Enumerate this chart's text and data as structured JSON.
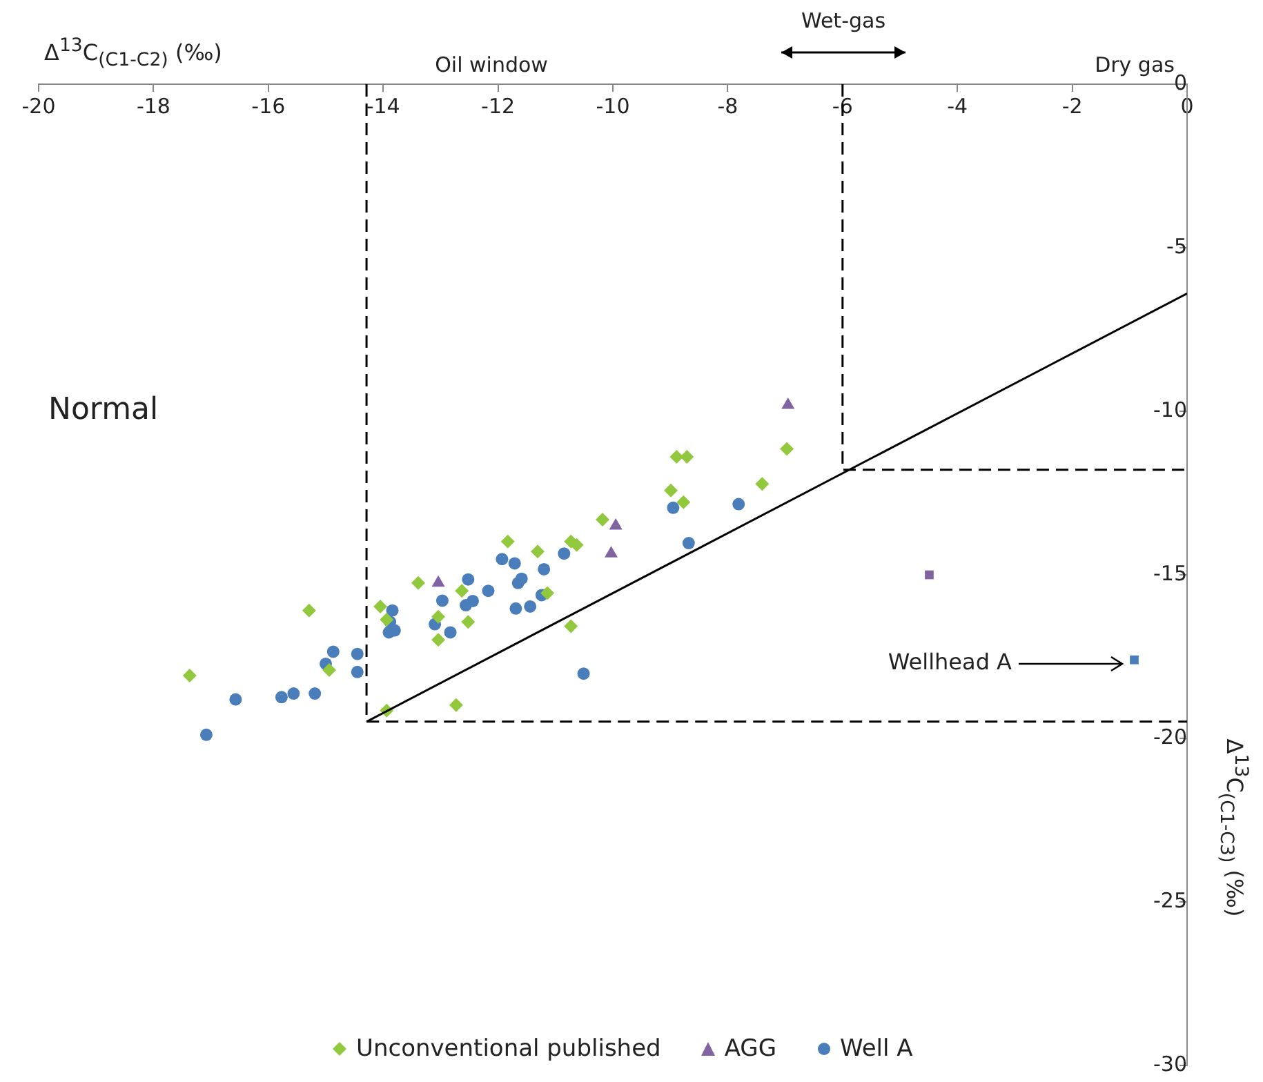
{
  "chart_data": {
    "type": "scatter",
    "xlabel": "Δ$^{13}$C$_{(C1-C2)}$ (‰)",
    "ylabel": "Δ$^{13}$C$_{(C1-C3)}$ (‰)",
    "xlim": [
      -20,
      0
    ],
    "xticks": [
      -20,
      -18,
      -16,
      -14,
      -12,
      -10,
      -8,
      -6,
      -4,
      -2,
      0
    ],
    "ylim": [
      -30,
      0
    ],
    "yticks": [
      -30,
      -25,
      -20,
      -15,
      -10,
      -5,
      0
    ],
    "grid": false,
    "legend": "bottom",
    "annotations": [
      "Normal",
      "Oil window",
      "Dry gas",
      "Wet-gas",
      "Wellhead A"
    ],
    "series": [
      {
        "type": "line",
        "color": "#000000",
        "line_style": "dashed",
        "marker": "none",
        "x": [
          -14.29,
          -14.29,
          0
        ],
        "values": [
          0,
          -19.49,
          -19.49
        ]
      },
      {
        "type": "line",
        "color": "#000000",
        "line_style": "dashed",
        "marker": "none",
        "x": [
          -6,
          -6,
          0
        ],
        "values": [
          0,
          -11.79,
          -11.79
        ]
      },
      {
        "type": "line",
        "color": "#000000",
        "line_style": "solid",
        "marker": "none",
        "x": [
          -14.29,
          0
        ],
        "values": [
          -19.49,
          -6.4
        ]
      },
      {
        "name": "Unconventional published",
        "type": "scatter",
        "marker": "diamond",
        "color": "#92c83e",
        "x": [
          -17.37,
          -15.29,
          -14.94,
          -14.05,
          -13.94,
          -13.94,
          -13.39,
          -13.04,
          -13.04,
          -12.73,
          -12.63,
          -12.52,
          -11.83,
          -11.31,
          -11.14,
          -10.73,
          -10.63,
          -10.73,
          -10.18,
          -8.99,
          -8.77,
          -8.89,
          -8.71,
          -7.4,
          -6.97
        ],
        "values": [
          -18.08,
          -16.09,
          -17.91,
          -15.97,
          -16.37,
          -19.15,
          -15.25,
          -16.28,
          -16.99,
          -18.98,
          -15.49,
          -16.44,
          -13.98,
          -14.29,
          -15.56,
          -13.98,
          -14.09,
          -16.57,
          -13.31,
          -12.42,
          -12.78,
          -11.39,
          -11.39,
          -12.22,
          -11.15
        ]
      },
      {
        "name": "AGG",
        "type": "scatter",
        "marker": "triangle",
        "color": "#8064a2",
        "x": [
          -13.04,
          -10.03,
          -9.95,
          -6.95
        ],
        "values": [
          -15.25,
          -14.35,
          -13.5,
          -9.81
        ]
      },
      {
        "name": "Well A",
        "type": "scatter",
        "marker": "circle",
        "color": "#4a7ebb",
        "x": [
          -17.08,
          -16.57,
          -15.77,
          -15.56,
          -15.19,
          -15.0,
          -14.87,
          -14.45,
          -14.45,
          -13.84,
          -13.88,
          -13.9,
          -13.8,
          -13.1,
          -12.97,
          -12.83,
          -12.52,
          -12.56,
          -12.44,
          -12.17,
          -11.93,
          -11.71,
          -11.65,
          -11.59,
          -11.69,
          -11.44,
          -11.24,
          -11.2,
          -10.85,
          -10.51,
          -8.95,
          -7.81,
          -8.68
        ],
        "values": [
          -19.89,
          -18.81,
          -18.74,
          -18.63,
          -18.63,
          -17.72,
          -17.35,
          -17.42,
          -17.97,
          -16.09,
          -16.44,
          -16.76,
          -16.7,
          -16.51,
          -15.79,
          -16.76,
          -15.14,
          -15.93,
          -15.8,
          -15.49,
          -14.52,
          -14.65,
          -15.25,
          -15.12,
          -16.03,
          -15.97,
          -15.62,
          -14.83,
          -14.35,
          -18.02,
          -12.95,
          -12.84,
          -14.03
        ]
      },
      {
        "type": "scatter",
        "marker": "square",
        "color": "#8064a2",
        "x": [
          -4.49
        ],
        "values": [
          -15.0
        ]
      },
      {
        "type": "scatter",
        "marker": "square",
        "color": "#4a7ebb",
        "x": [
          -0.92
        ],
        "values": [
          -17.6
        ]
      }
    ]
  }
}
